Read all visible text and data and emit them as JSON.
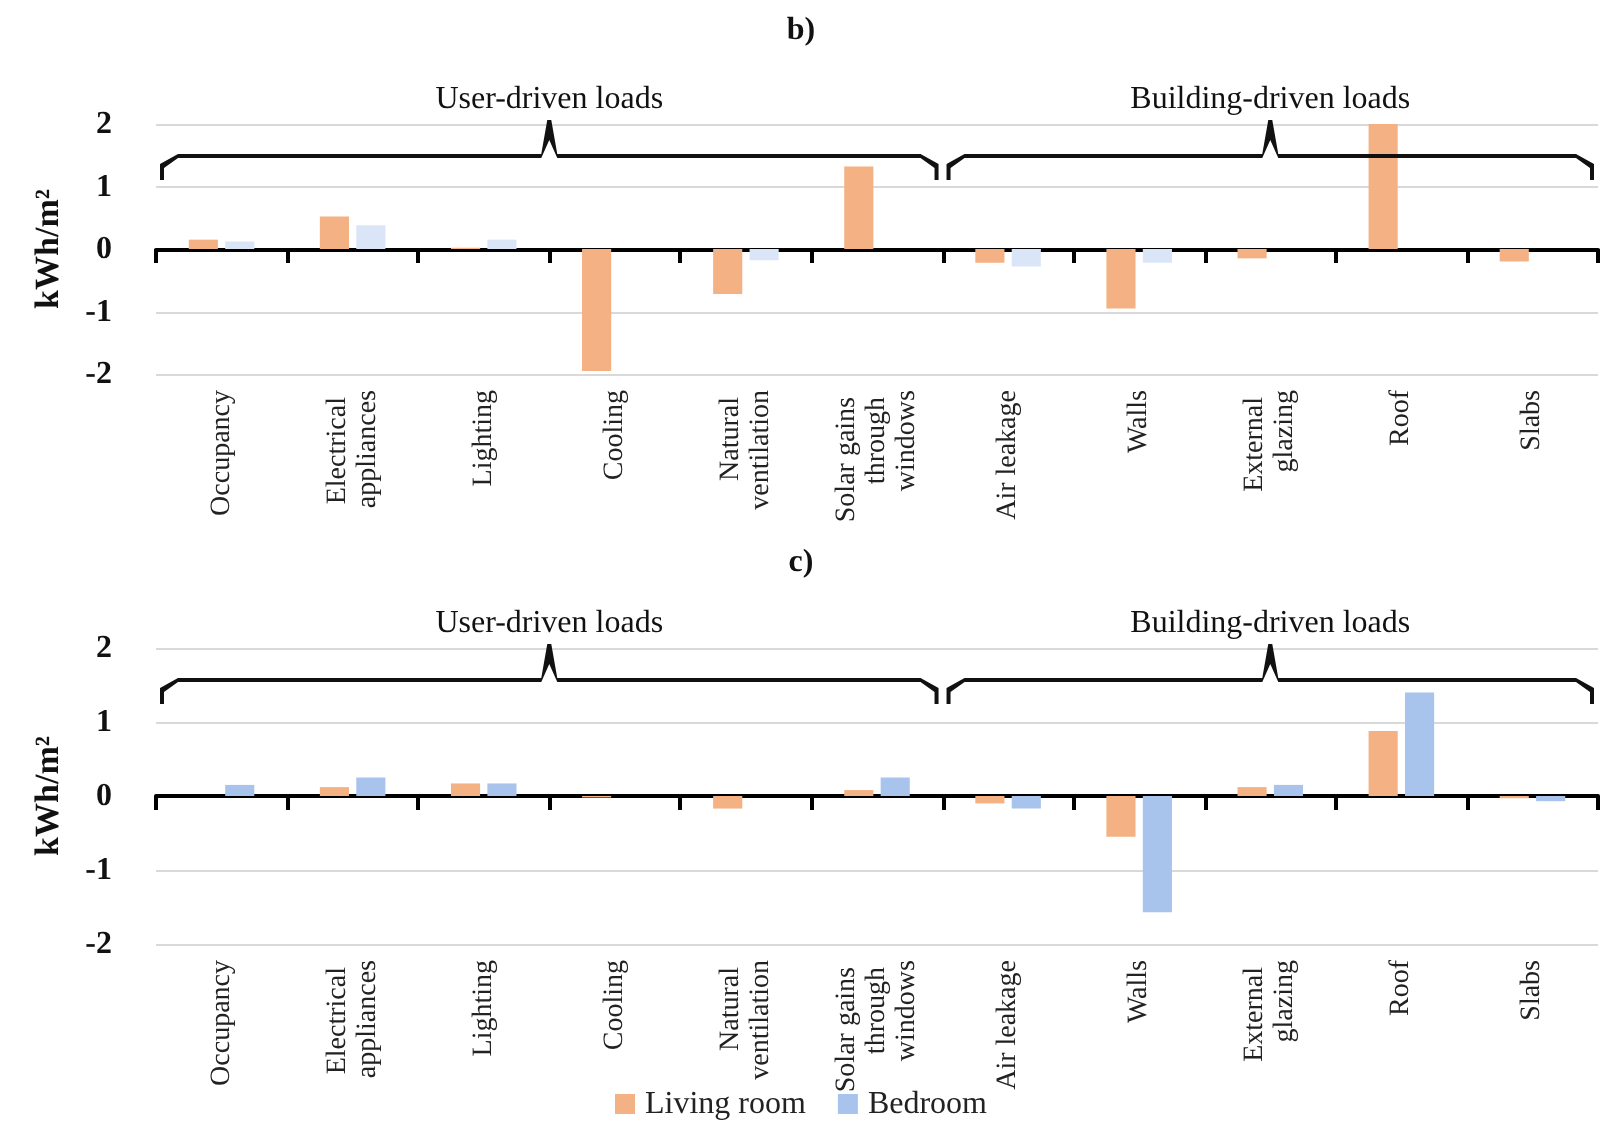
{
  "chart_data": [
    {
      "type": "bar",
      "title": "b)",
      "ylabel": "kWh/m²",
      "categories": [
        "Occupancy",
        "Electrical appliances",
        "Lighting",
        "Cooling",
        "Natural ventilation",
        "Solar gains through windows",
        "Air leakage",
        "Walls",
        "External glazing",
        "Roof",
        "Slabs"
      ],
      "series": [
        {
          "color": "#f4b183",
          "values": [
            0.15,
            0.52,
            0.02,
            -1.95,
            -0.72,
            1.32,
            -0.22,
            -0.95,
            -0.15,
            2.0,
            -0.2
          ]
        },
        {
          "color": "#dae6f7",
          "values": [
            0.12,
            0.38,
            0.15,
            0,
            -0.18,
            0,
            -0.28,
            -0.22,
            null,
            null,
            null
          ]
        }
      ],
      "annotations": [
        "User-driven loads",
        "Building-driven loads"
      ],
      "ylim": [
        -2,
        2
      ],
      "yticks": [
        -2,
        -1,
        0,
        1,
        2
      ],
      "grid": "y"
    },
    {
      "type": "bar",
      "title": "c)",
      "ylabel": "kWh/m²",
      "categories": [
        "Occupancy",
        "Electrical appliances",
        "Lighting",
        "Cooling",
        "Natural ventilation",
        "Solar gains through windows",
        "Air leakage",
        "Walls",
        "External glazing",
        "Roof",
        "Slabs"
      ],
      "series": [
        {
          "name": "Living room",
          "color": "#f4b183",
          "values": [
            0,
            0.12,
            0.17,
            -0.02,
            -0.17,
            0.08,
            -0.1,
            -0.55,
            0.12,
            0.88,
            -0.03
          ]
        },
        {
          "name": "Bedroom",
          "color": "#a9c4ec",
          "values": [
            0.15,
            0.25,
            0.17,
            0,
            0,
            0.25,
            -0.17,
            -1.57,
            0.15,
            1.4,
            -0.07
          ]
        }
      ],
      "annotations": [
        "User-driven loads",
        "Building-driven loads"
      ],
      "ylim": [
        -2,
        2
      ],
      "yticks": [
        -2,
        -1,
        0,
        1,
        2
      ],
      "grid": "y",
      "legend": "bottom"
    }
  ]
}
